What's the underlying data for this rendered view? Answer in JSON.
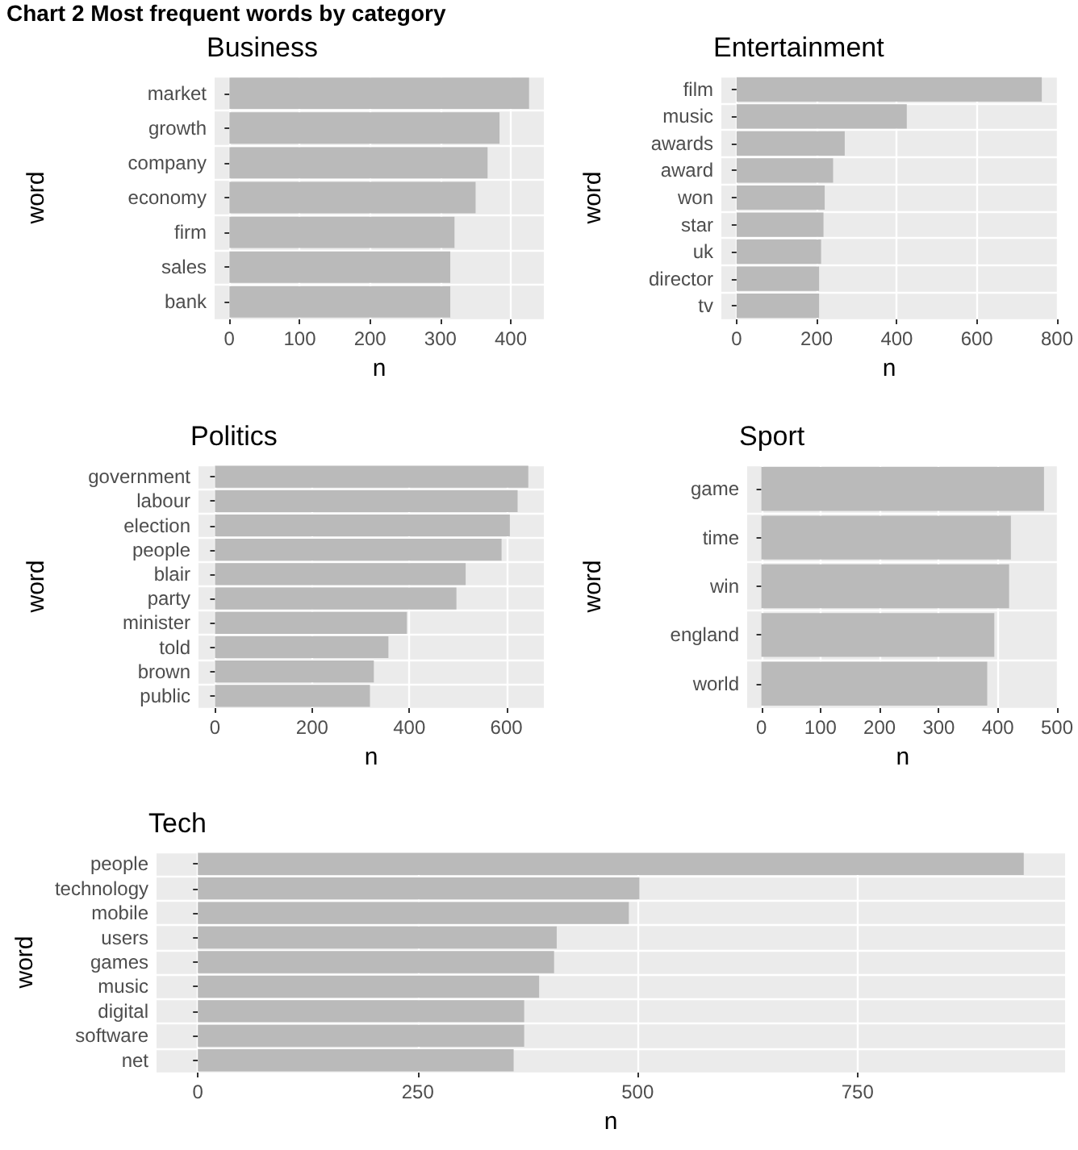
{
  "chart_data": [
    {
      "type": "bar",
      "orientation": "horizontal",
      "title": "Business",
      "xlabel": "n",
      "ylabel": "word",
      "annotations": [
        "Chart 2 Most frequent words by category"
      ],
      "categories": [
        "market",
        "growth",
        "company",
        "economy",
        "firm",
        "sales",
        "bank"
      ],
      "values": [
        426,
        384,
        367,
        350,
        320,
        314,
        314
      ],
      "color": "#bababa",
      "xlim": [
        -21,
        447
      ],
      "xticks": [
        0,
        100,
        200,
        300,
        400
      ],
      "grid": true
    },
    {
      "type": "bar",
      "orientation": "horizontal",
      "title": "Entertainment",
      "xlabel": "n",
      "ylabel": "word",
      "categories": [
        "film",
        "music",
        "awards",
        "award",
        "won",
        "star",
        "uk",
        "director",
        "tv"
      ],
      "values": [
        762,
        425,
        270,
        241,
        220,
        217,
        211,
        206,
        206
      ],
      "color": "#bababa",
      "xlim": [
        -38,
        800
      ],
      "xticks": [
        0,
        200,
        400,
        600,
        800
      ],
      "grid": true
    },
    {
      "type": "bar",
      "orientation": "horizontal",
      "title": "Politics",
      "xlabel": "n",
      "ylabel": "word",
      "categories": [
        "government",
        "labour",
        "election",
        "people",
        "blair",
        "party",
        "minister",
        "told",
        "brown",
        "public"
      ],
      "values": [
        645,
        623,
        607,
        590,
        516,
        497,
        395,
        357,
        327,
        319
      ],
      "color": "#bababa",
      "xlim": [
        -34,
        677
      ],
      "xticks": [
        0,
        200,
        400,
        600
      ],
      "grid": true
    },
    {
      "type": "bar",
      "orientation": "horizontal",
      "title": "Sport",
      "xlabel": "n",
      "ylabel": "word",
      "categories": [
        "game",
        "time",
        "win",
        "england",
        "world"
      ],
      "values": [
        478,
        422,
        419,
        394,
        382
      ],
      "color": "#bababa",
      "xlim": [
        -24,
        502
      ],
      "xticks": [
        0,
        100,
        200,
        300,
        400,
        500
      ],
      "grid": true
    },
    {
      "type": "bar",
      "orientation": "horizontal",
      "title": "Tech",
      "xlabel": "n",
      "ylabel": "word",
      "categories": [
        "people",
        "technology",
        "mobile",
        "users",
        "games",
        "music",
        "digital",
        "software",
        "net"
      ],
      "values": [
        939,
        502,
        490,
        408,
        405,
        388,
        371,
        371,
        359
      ],
      "color": "#bababa",
      "xlim": [
        -47,
        986
      ],
      "xticks": [
        0,
        250,
        500,
        750
      ],
      "grid": true
    }
  ]
}
